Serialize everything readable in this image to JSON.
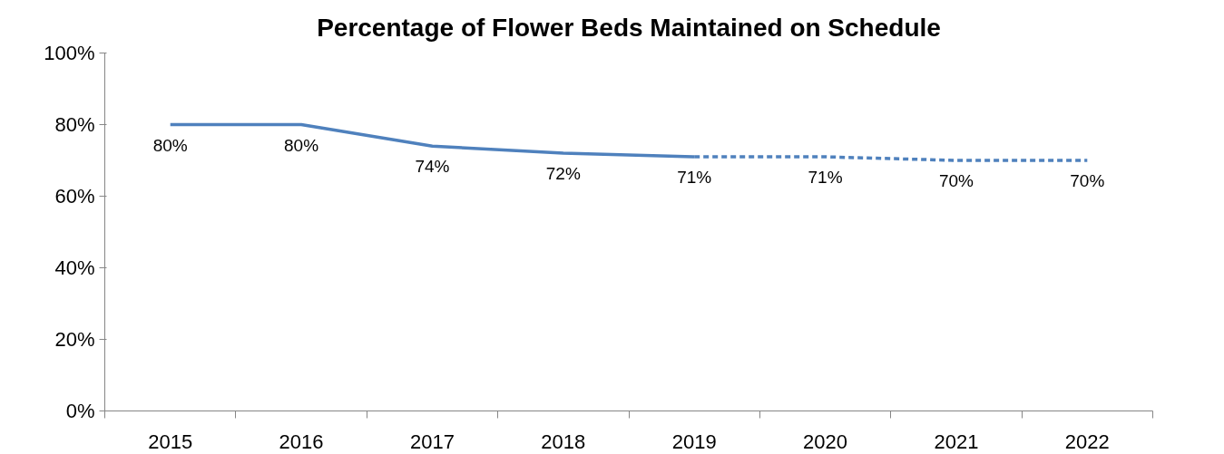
{
  "chart_data": {
    "type": "line",
    "title": "Percentage of Flower Beds Maintained on Schedule",
    "categories": [
      "2015",
      "2016",
      "2017",
      "2018",
      "2019",
      "2020",
      "2021",
      "2022"
    ],
    "series": [
      {
        "color": "#4f81bd",
        "line_style": "solid",
        "values": [
          80,
          80,
          74,
          72,
          71,
          null,
          null,
          null
        ],
        "value_labels": [
          "80%",
          "80%",
          "74%",
          "72%",
          "71%",
          null,
          null,
          null
        ]
      },
      {
        "color": "#4f81bd",
        "line_style": "dashed",
        "values": [
          null,
          null,
          null,
          null,
          71,
          71,
          70,
          70
        ],
        "value_labels": [
          null,
          null,
          null,
          null,
          null,
          "71%",
          "70%",
          "70%"
        ]
      }
    ],
    "ylim": [
      0,
      100
    ],
    "yticks": [
      {
        "value": 0,
        "label": "0%"
      },
      {
        "value": 20,
        "label": "20%"
      },
      {
        "value": 40,
        "label": "40%"
      },
      {
        "value": 60,
        "label": "60%"
      },
      {
        "value": 80,
        "label": "80%"
      },
      {
        "value": 100,
        "label": "100%"
      }
    ],
    "grid": false,
    "marker": "none"
  }
}
